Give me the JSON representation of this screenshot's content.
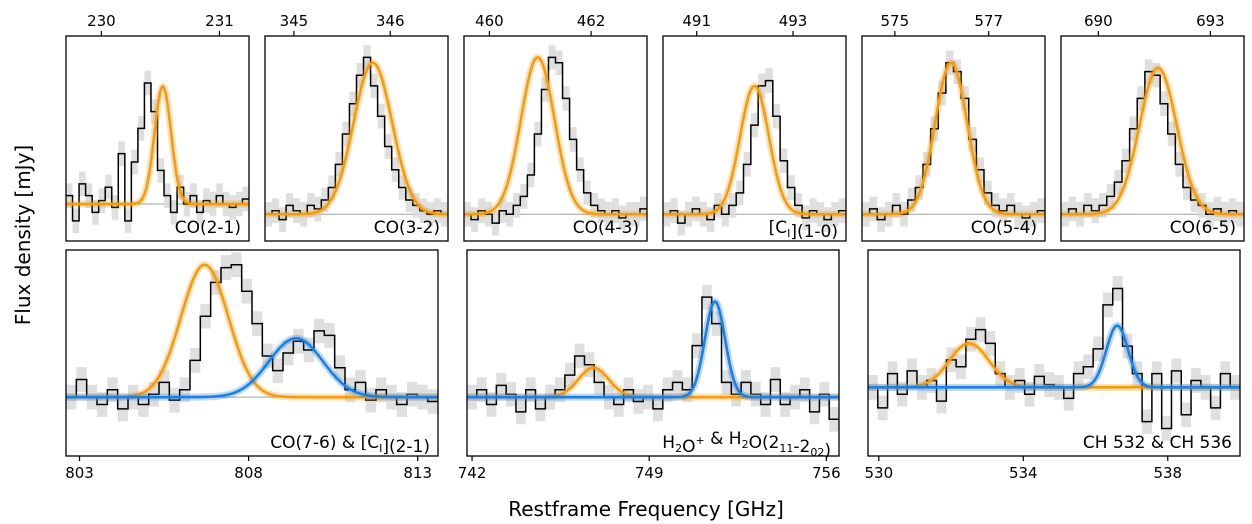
{
  "figure": {
    "ylabel": "Flux density [mJy]",
    "xlabel": "Restframe Frequency [GHz]",
    "colors": {
      "orange": "#f39c12",
      "blue": "#1f7fe0",
      "step": "#000000",
      "error": "#d9d9d9",
      "baseline": "#a0a0a0"
    }
  },
  "chart_data": [
    {
      "type": "line",
      "label": "CO(2-1)",
      "xlim": [
        229.7,
        231.25
      ],
      "ticks": [
        230,
        231
      ],
      "tick_labels": [
        "230",
        "231"
      ],
      "tick_side": "top",
      "ylim": [
        -0.22,
        1.0
      ],
      "series": [
        {
          "name": "",
          "color": "orange",
          "center": 230.52,
          "amp": 0.7,
          "sigma": 0.07
        }
      ],
      "spectrum": [
        0.05,
        -0.1,
        0.12,
        0.05,
        -0.05,
        0.02,
        0.1,
        -0.02,
        0.3,
        -0.1,
        0.25,
        0.45,
        0.72,
        0.55,
        0.2,
        0.05,
        -0.05,
        0.1,
        0.0,
        0.05,
        -0.05,
        0.02,
        0.0,
        0.05,
        0.0,
        -0.02,
        0.0,
        0.03
      ]
    },
    {
      "type": "line",
      "label": "CO(3-2)",
      "xlim": [
        344.7,
        346.6
      ],
      "ticks": [
        345,
        346
      ],
      "tick_labels": [
        "345",
        "346"
      ],
      "tick_side": "top",
      "ylim": [
        -0.15,
        1.0
      ],
      "series": [
        {
          "name": "",
          "color": "orange",
          "center": 345.82,
          "amp": 0.85,
          "sigma": 0.2
        }
      ],
      "spectrum": [
        0.0,
        0.02,
        -0.03,
        0.05,
        0.02,
        0.0,
        0.05,
        0.03,
        0.08,
        0.15,
        0.28,
        0.45,
        0.62,
        0.78,
        0.88,
        0.72,
        0.55,
        0.38,
        0.25,
        0.15,
        0.08,
        0.05,
        0.02,
        0.0,
        0.02,
        0.0
      ]
    },
    {
      "type": "line",
      "label": "CO(4-3)",
      "xlim": [
        459.5,
        463.1
      ],
      "ticks": [
        460,
        462
      ],
      "tick_labels": [
        "460",
        "462"
      ],
      "tick_side": "top",
      "ylim": [
        -0.15,
        1.0
      ],
      "series": [
        {
          "name": "",
          "color": "orange",
          "center": 460.95,
          "amp": 0.88,
          "sigma": 0.33
        }
      ],
      "spectrum": [
        0.0,
        -0.03,
        0.02,
        0.0,
        -0.05,
        0.02,
        0.0,
        0.05,
        0.1,
        0.22,
        0.45,
        0.7,
        0.88,
        0.85,
        0.65,
        0.42,
        0.25,
        0.12,
        0.05,
        0.02,
        0.0,
        0.02,
        -0.02,
        0.0,
        0.0,
        0.03
      ]
    },
    {
      "type": "line",
      "label": "[C_I](1-0)",
      "xlim": [
        490.3,
        494.1
      ],
      "ticks": [
        491,
        493
      ],
      "tick_labels": [
        "491",
        "493"
      ],
      "tick_side": "top",
      "ylim": [
        -0.15,
        1.0
      ],
      "series": [
        {
          "name": "",
          "color": "orange",
          "center": 492.2,
          "amp": 0.72,
          "sigma": 0.3
        }
      ],
      "spectrum": [
        0.0,
        0.02,
        -0.05,
        0.0,
        0.03,
        0.0,
        -0.03,
        0.05,
        0.0,
        0.05,
        0.12,
        0.28,
        0.5,
        0.72,
        0.75,
        0.55,
        0.3,
        0.15,
        0.05,
        -0.02,
        0.02,
        0.0,
        -0.03,
        0.0,
        0.02
      ]
    },
    {
      "type": "line",
      "label": "CO(5-4)",
      "xlim": [
        574.3,
        578.2
      ],
      "ticks": [
        575,
        577
      ],
      "tick_labels": [
        "575",
        "577"
      ],
      "tick_side": "top",
      "ylim": [
        -0.15,
        1.0
      ],
      "series": [
        {
          "name": "",
          "color": "orange",
          "center": 576.2,
          "amp": 0.85,
          "sigma": 0.34
        }
      ],
      "spectrum": [
        0.0,
        0.03,
        -0.03,
        0.0,
        0.05,
        0.0,
        0.08,
        0.15,
        0.28,
        0.48,
        0.68,
        0.85,
        0.8,
        0.65,
        0.42,
        0.25,
        0.12,
        0.05,
        0.02,
        0.05,
        0.0,
        -0.02,
        0.0,
        0.02
      ]
    },
    {
      "type": "line",
      "label": "CO(6-5)",
      "xlim": [
        689.0,
        693.9
      ],
      "ticks": [
        690,
        693
      ],
      "tick_labels": [
        "690",
        "693"
      ],
      "tick_side": "top",
      "ylim": [
        -0.15,
        1.0
      ],
      "series": [
        {
          "name": "",
          "color": "orange",
          "center": 691.6,
          "amp": 0.82,
          "sigma": 0.5
        }
      ],
      "spectrum": [
        0.0,
        0.03,
        0.0,
        0.05,
        0.02,
        0.05,
        0.1,
        0.18,
        0.3,
        0.48,
        0.65,
        0.8,
        0.78,
        0.62,
        0.45,
        0.28,
        0.15,
        0.08,
        0.05,
        0.0,
        0.03,
        0.0,
        0.02,
        0.0
      ]
    },
    {
      "type": "line",
      "label": "CO(7-6) & [C_I](2-1)",
      "xlim": [
        802.6,
        813.6
      ],
      "ticks": [
        803,
        808,
        813
      ],
      "tick_labels": [
        "803",
        "808",
        "813"
      ],
      "tick_side": "bottom",
      "ylim": [
        -0.4,
        1.0
      ],
      "series": [
        {
          "name": "",
          "color": "orange",
          "center": 806.7,
          "amp": 0.9,
          "sigma": 0.7
        },
        {
          "name": "",
          "color": "blue",
          "center": 809.4,
          "amp": 0.4,
          "sigma": 0.8
        }
      ],
      "spectrum": [
        0.0,
        0.12,
        0.0,
        -0.05,
        0.05,
        -0.08,
        0.0,
        -0.05,
        0.02,
        0.1,
        -0.02,
        0.05,
        0.25,
        0.55,
        0.78,
        0.88,
        0.9,
        0.72,
        0.5,
        0.28,
        0.18,
        0.3,
        0.38,
        0.32,
        0.45,
        0.42,
        0.2,
        0.05,
        0.1,
        -0.02,
        0.05,
        0.0,
        -0.05,
        0.02,
        0.0,
        -0.03
      ]
    },
    {
      "type": "line",
      "label": "H2O+ & H2O(2_11-2_02)",
      "xlim": [
        741.8,
        756.5
      ],
      "ticks": [
        742,
        749,
        756
      ],
      "tick_labels": [
        "742",
        "749",
        "756"
      ],
      "tick_side": "bottom",
      "ylim": [
        -0.4,
        1.0
      ],
      "series": [
        {
          "name": "",
          "color": "orange",
          "center": 746.8,
          "amp": 0.2,
          "sigma": 0.6
        },
        {
          "name": "",
          "color": "blue",
          "center": 751.6,
          "amp": 0.65,
          "sigma": 0.4
        }
      ],
      "spectrum": [
        0.0,
        0.05,
        -0.05,
        0.08,
        0.02,
        -0.1,
        0.05,
        -0.08,
        0.0,
        0.05,
        0.15,
        0.28,
        0.22,
        0.1,
        0.0,
        -0.05,
        0.05,
        -0.03,
        0.0,
        -0.08,
        0.05,
        0.1,
        0.05,
        0.35,
        0.68,
        0.5,
        0.1,
        0.02,
        0.1,
        0.02,
        -0.05,
        0.12,
        -0.05,
        0.0,
        0.05,
        -0.1,
        0.02,
        -0.15
      ]
    },
    {
      "type": "line",
      "label": "CH 532 & CH 536",
      "xlim": [
        529.7,
        540.0
      ],
      "ticks": [
        530,
        534,
        538
      ],
      "tick_labels": [
        "530",
        "534",
        "538"
      ],
      "tick_side": "bottom",
      "ylim": [
        -0.5,
        1.0
      ],
      "series": [
        {
          "name": "",
          "color": "orange",
          "center": 532.5,
          "amp": 0.32,
          "sigma": 0.55
        },
        {
          "name": "",
          "color": "blue",
          "center": 536.6,
          "amp": 0.45,
          "sigma": 0.3
        }
      ],
      "spectrum": [
        0.0,
        -0.15,
        0.1,
        -0.05,
        0.12,
        0.0,
        0.05,
        -0.1,
        0.2,
        0.15,
        0.35,
        0.42,
        0.32,
        0.1,
        0.0,
        0.05,
        -0.05,
        0.08,
        0.02,
        0.0,
        -0.08,
        0.1,
        0.15,
        0.28,
        0.6,
        0.72,
        0.3,
        0.1,
        -0.25,
        0.1,
        -0.3,
        0.12,
        -0.2,
        0.05,
        0.0,
        -0.15,
        0.1,
        0.0
      ]
    }
  ]
}
